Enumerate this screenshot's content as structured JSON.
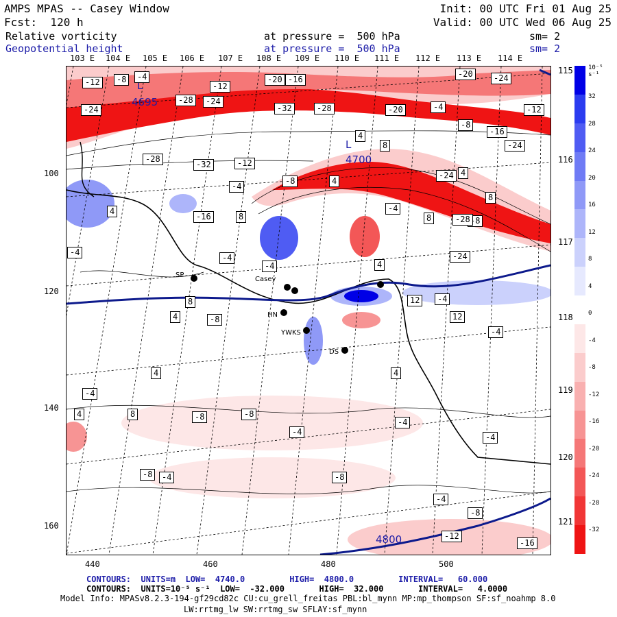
{
  "header": {
    "line1_left": "AMPS MPAS -- Casey Window",
    "line1_right": "Init: 00 UTC Fri 01 Aug 25",
    "line2_left": "Fcst:  120 h",
    "line2_right": "Valid: 00 UTC Wed 06 Aug 25",
    "field1": {
      "name": "Relative vorticity",
      "level": "at pressure =  500 hPa",
      "smooth": "sm= 2"
    },
    "field2": {
      "name": "Geopotential height",
      "level": "at pressure =  500 hPa",
      "smooth": "sm= 2"
    }
  },
  "lon_labels": [
    "103 E",
    "104 E",
    "105 E",
    "106 E",
    "107 E",
    "108 E",
    "109 E",
    "110 E",
    "111 E",
    "112 E",
    "113 E",
    "114 E"
  ],
  "lat_labels": [
    "115 E",
    "116 E",
    "117 E",
    "118 E",
    "119 E",
    "120 E",
    "121 E"
  ],
  "y_ticks": [
    "100",
    "120",
    "140",
    "160"
  ],
  "x_ticks": [
    "440",
    "460",
    "480",
    "500"
  ],
  "stations": [
    {
      "name": "SP"
    },
    {
      "name": "Casey"
    },
    {
      "name": "HN"
    },
    {
      "name": "YWKS"
    },
    {
      "name": "DS"
    }
  ],
  "contour_labels_vort": [
    "-12",
    "-8",
    "-24",
    "-28",
    "-12",
    "-16",
    "-32",
    "-28",
    "-20",
    "-4",
    "-20",
    "-24",
    "-8",
    "-16",
    "-24",
    "-12",
    "-4",
    "-24",
    "-28",
    "-32",
    "-12",
    "-4",
    "4",
    "8",
    "-8",
    "-4",
    "4",
    "8",
    "-24",
    "-28",
    "-20",
    "-24",
    "-16",
    "-8",
    "4",
    "8",
    "-4",
    "-4",
    "8",
    "12",
    "4",
    "8",
    "4",
    "12",
    "-4",
    "-8",
    "-4",
    "4",
    "-4",
    "4",
    "8",
    "-4",
    "-8",
    "-8",
    "-4",
    "-4",
    "-4",
    "-8",
    "-8",
    "-4",
    "-12",
    "-16",
    "-8",
    "-4",
    "4",
    "4"
  ],
  "height_labels": [
    {
      "text": "L"
    },
    {
      "text": "4695"
    },
    {
      "text": "L"
    },
    {
      "text": "4700"
    },
    {
      "text": "4800"
    }
  ],
  "colorbar": {
    "unit": "10⁻⁵ s⁻¹",
    "ticks": [
      "32",
      "28",
      "24",
      "20",
      "16",
      "12",
      "8",
      "4",
      "0",
      "-4",
      "-8",
      "-12",
      "-16",
      "-20",
      "-24",
      "-28",
      "-32"
    ],
    "colors": [
      "#0000e6",
      "#2b3cf0",
      "#4f5cf3",
      "#6f7bf5",
      "#8f99f7",
      "#adb5fa",
      "#cbd1fc",
      "#e6e9fe",
      "#ffffff",
      "#fde7e7",
      "#fbcccc",
      "#f9b0b0",
      "#f79494",
      "#f57777",
      "#f35757",
      "#f13636",
      "#ef1414"
    ]
  },
  "footer": {
    "line1": "CONTOURS:  UNITS=m  LOW=  4740.0         HIGH=  4800.0         INTERVAL=   60.000",
    "line2": "CONTOURS:  UNITS=10⁻⁵ s⁻¹  LOW=  -32.000       HIGH=  32.000       INTERVAL=   4.0000",
    "line3": "Model Info: MPASv8.2.3-194-gf29cd82c CU:cu_grell_freitas PBL:bl_mynn MP:mp_thompson SF:sf_noahmp 8.0",
    "line4": "LW:rrtmg_lw SW:rrtmg_sw SFLAY:sf_mynn"
  }
}
